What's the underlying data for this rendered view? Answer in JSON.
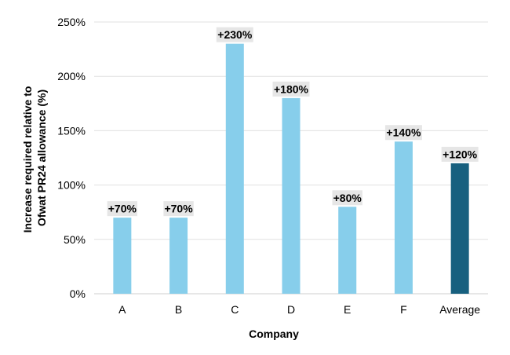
{
  "chart_data": {
    "type": "bar",
    "title": "",
    "xlabel": "Company",
    "ylabel_lines": [
      "Increase required relative to",
      "Ofwat PR24 allowance (%)"
    ],
    "categories": [
      "A",
      "B",
      "C",
      "D",
      "E",
      "F",
      "Average"
    ],
    "values": [
      70,
      70,
      230,
      180,
      80,
      140,
      120
    ],
    "data_labels": [
      "+70%",
      "+70%",
      "+230%",
      "+180%",
      "+80%",
      "+140%",
      "+120%"
    ],
    "yticks": [
      0,
      50,
      100,
      150,
      200,
      250
    ],
    "ytick_labels": [
      "0%",
      "50%",
      "100%",
      "150%",
      "200%",
      "250%"
    ],
    "ylim": [
      0,
      250
    ],
    "grid": true,
    "colors": {
      "bar": "#87ceeb",
      "average_bar": "#17607f",
      "label_background": "#e6e6e6",
      "gridline": "#e0e0e0"
    }
  }
}
